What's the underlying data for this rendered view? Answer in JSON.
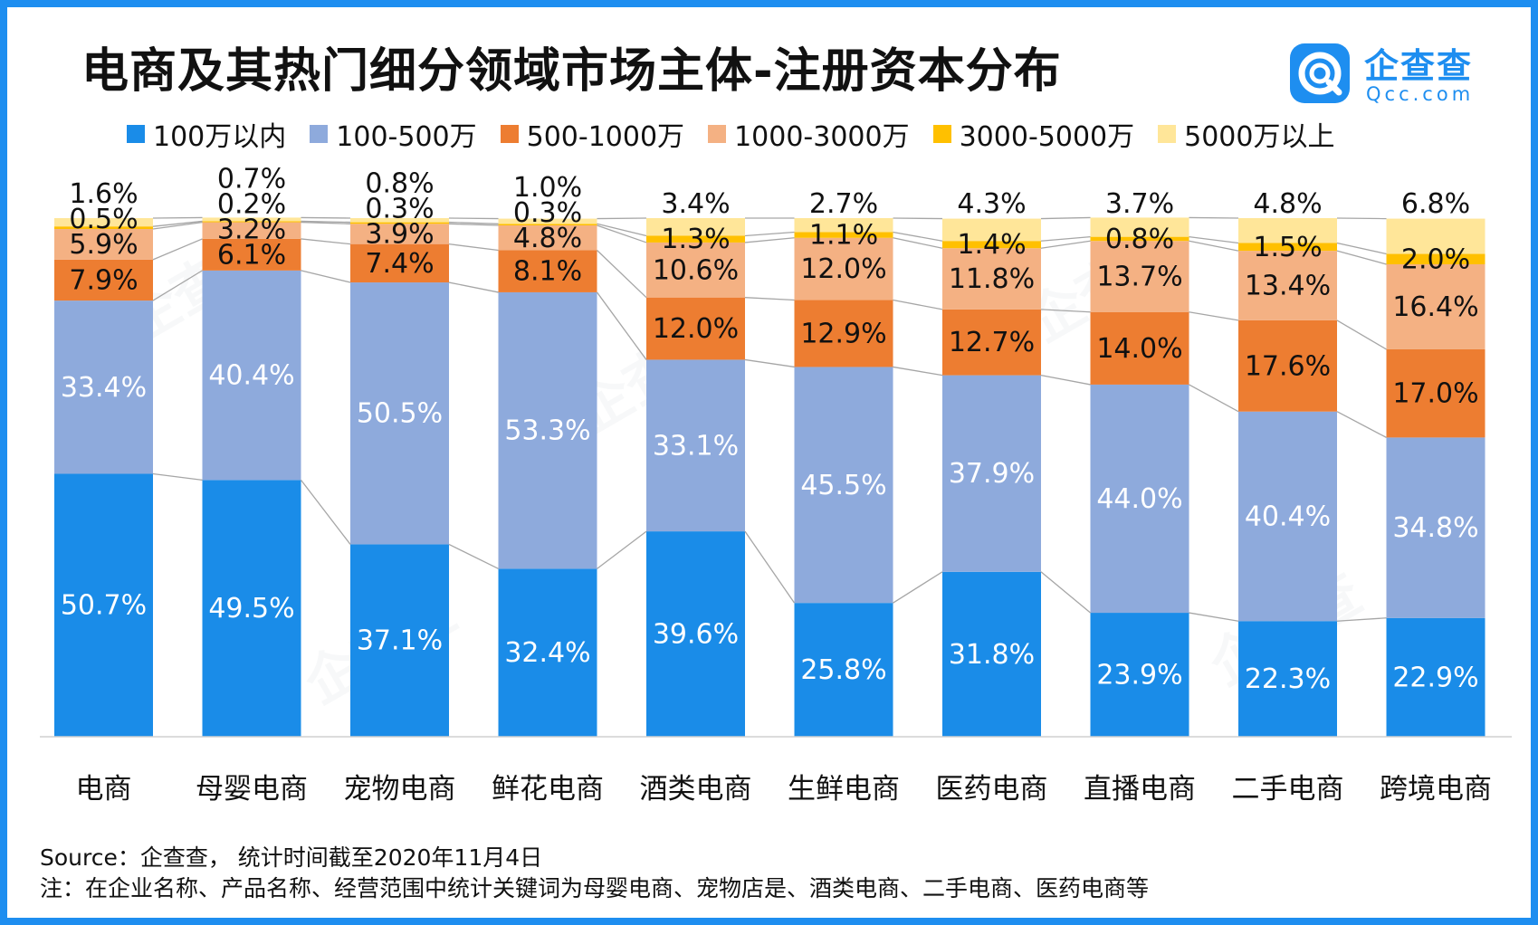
{
  "title": "电商及其热门细分领域市场主体-注册资本分布",
  "brand": {
    "name": "企查查",
    "sub": "Qcc.com",
    "color": "#1e8ef0",
    "watermark": "企查查"
  },
  "footer": {
    "source": "Source：企查查， 统计时间截至2020年11月4日",
    "note": "注：在企业名称、产品名称、经营范围中统计关键词为母婴电商、宠物店是、酒类电商、二手电商、医药电商等"
  },
  "chart_data": {
    "type": "bar",
    "stacked": true,
    "normalized": true,
    "title": "电商及其热门细分领域市场主体-注册资本分布",
    "xlabel": "",
    "ylabel": "",
    "ylim": [
      0,
      100
    ],
    "grid": false,
    "legend": "top",
    "categories": [
      "电商",
      "母婴电商",
      "宠物电商",
      "鲜花电商",
      "酒类电商",
      "生鲜电商",
      "医药电商",
      "直播电商",
      "二手电商",
      "跨境电商"
    ],
    "series": [
      {
        "name": "100万以内",
        "color": "#1a8ce8",
        "label_color": "#ffffff",
        "values": [
          50.7,
          49.5,
          37.1,
          32.4,
          39.6,
          25.8,
          31.8,
          23.9,
          22.3,
          22.9
        ],
        "labels": [
          "50.7%",
          "49.5%",
          "37.1%",
          "32.4%",
          "39.6%",
          "25.8%",
          "31.8%",
          "23.9%",
          "22.3%",
          "22.9%"
        ]
      },
      {
        "name": "100-500万",
        "color": "#8eaadc",
        "label_color": "#ffffff",
        "values": [
          33.4,
          40.4,
          50.5,
          53.3,
          33.1,
          45.5,
          37.9,
          44.0,
          40.4,
          34.8
        ],
        "labels": [
          "33.4%",
          "40.4%",
          "50.5%",
          "53.3%",
          "33.1%",
          "45.5%",
          "37.9%",
          "44.0%",
          "40.4%",
          "34.8%"
        ]
      },
      {
        "name": "500-1000万",
        "color": "#ed7d31",
        "label_color": "#111111",
        "values": [
          7.9,
          6.1,
          7.4,
          8.1,
          12.0,
          12.9,
          12.7,
          14.0,
          17.6,
          17.0
        ],
        "labels": [
          "7.9%",
          "6.1%",
          "7.4%",
          "8.1%",
          "12.0%",
          "12.9%",
          "12.7%",
          "14.0%",
          "17.6%",
          "17.0%"
        ]
      },
      {
        "name": "1000-3000万",
        "color": "#f4b183",
        "label_color": "#111111",
        "values": [
          5.9,
          3.2,
          3.9,
          4.8,
          10.6,
          12.0,
          11.8,
          13.7,
          13.4,
          16.4
        ],
        "labels": [
          "5.9%",
          "3.2%",
          "3.9%",
          "4.8%",
          "10.6%",
          "12.0%",
          "11.8%",
          "13.7%",
          "13.4%",
          "16.4%"
        ]
      },
      {
        "name": "3000-5000万",
        "color": "#ffc000",
        "label_color": "#111111",
        "values": [
          0.5,
          0.2,
          0.3,
          0.3,
          1.3,
          1.1,
          1.4,
          0.8,
          1.5,
          2.0
        ],
        "labels": [
          "0.5%",
          "0.2%",
          "0.3%",
          "0.3%",
          "1.3%",
          "1.1%",
          "1.4%",
          "0.8%",
          "1.5%",
          "2.0%"
        ]
      },
      {
        "name": "5000万以上",
        "color": "#ffe699",
        "label_color": "#111111",
        "values": [
          1.6,
          0.7,
          0.8,
          1.0,
          3.4,
          2.7,
          4.3,
          3.7,
          4.8,
          6.8
        ],
        "labels": [
          "1.6%",
          "0.7%",
          "0.8%",
          "1.0%",
          "3.4%",
          "2.7%",
          "4.3%",
          "3.7%",
          "4.8%",
          "6.8%"
        ]
      }
    ]
  }
}
